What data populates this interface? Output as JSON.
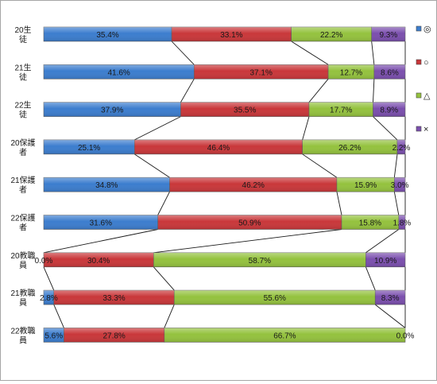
{
  "chart_data": {
    "type": "bar",
    "stacked": true,
    "orientation": "horizontal",
    "percent_scale": true,
    "series_lines": true,
    "categories": [
      "20生徒",
      "21生徒",
      "22生徒",
      "20保護者",
      "21保護者",
      "22保護者",
      "20教職員",
      "21教職員",
      "22教職員"
    ],
    "series": [
      {
        "name": "◎",
        "color": "#3c7dce",
        "values": [
          35.4,
          41.6,
          37.9,
          25.1,
          34.8,
          31.6,
          0.0,
          2.8,
          5.6
        ],
        "labels": [
          "35.4%",
          "41.6%",
          "37.9%",
          "25.1%",
          "34.8%",
          "31.6%",
          "0.0%",
          "2.8%",
          "5.6%"
        ]
      },
      {
        "name": "○",
        "color": "#c9373a",
        "values": [
          33.1,
          37.1,
          35.5,
          46.4,
          46.2,
          50.9,
          30.4,
          33.3,
          27.8
        ],
        "labels": [
          "33.1%",
          "37.1%",
          "35.5%",
          "46.4%",
          "46.2%",
          "50.9%",
          "30.4%",
          "33.3%",
          "27.8%"
        ]
      },
      {
        "name": "△",
        "color": "#94c23e",
        "values": [
          22.2,
          12.7,
          17.7,
          26.2,
          15.9,
          15.8,
          58.7,
          55.6,
          66.7
        ],
        "labels": [
          "22.2%",
          "12.7%",
          "17.7%",
          "26.2%",
          "15.9%",
          "15.8%",
          "58.7%",
          "55.6%",
          "66.7%"
        ]
      },
      {
        "name": "×",
        "color": "#7b4fae",
        "values": [
          9.3,
          8.6,
          8.9,
          2.2,
          3.0,
          1.8,
          10.9,
          8.3,
          0.0
        ],
        "labels": [
          "9.3%",
          "8.6%",
          "8.9%",
          "2.2%",
          "3.0%",
          "1.8%",
          "10.9%",
          "8.3%",
          "0.0%"
        ]
      }
    ],
    "xlim": [
      0,
      100
    ],
    "grid": false,
    "legend_position": "right"
  }
}
